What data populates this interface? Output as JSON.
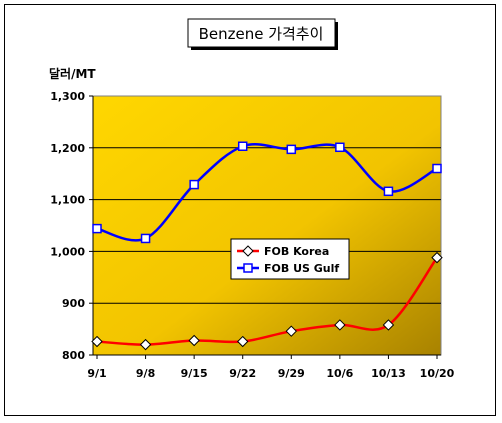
{
  "chart_data": {
    "type": "line",
    "title": "Benzene 가격추이",
    "ylabel": "달러/MT",
    "xlabel": "",
    "categories": [
      "9/1",
      "9/8",
      "9/15",
      "9/22",
      "9/29",
      "10/6",
      "10/13",
      "10/20"
    ],
    "ylim": [
      800,
      1300
    ],
    "yticks": [
      800,
      900,
      1000,
      1100,
      1200,
      1300
    ],
    "ytick_labels": [
      "800",
      "900",
      "1,000",
      "1,100",
      "1,200",
      "1,300"
    ],
    "grid": "horizontal",
    "legend_position": "center",
    "series": [
      {
        "name": "FOB Korea",
        "color": "#ff0000",
        "marker": "diamond",
        "values": [
          826,
          820,
          828,
          826,
          846,
          858,
          858,
          988
        ]
      },
      {
        "name": "FOB US Gulf",
        "color": "#0000ff",
        "marker": "square",
        "values": [
          1044,
          1025,
          1129,
          1203,
          1197,
          1201,
          1116,
          1160
        ]
      }
    ]
  }
}
